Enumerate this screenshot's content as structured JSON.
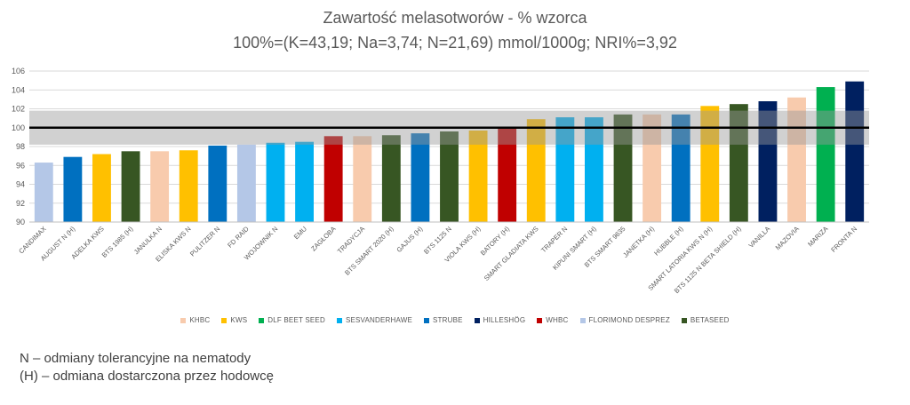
{
  "chart_data": {
    "type": "bar",
    "title": "Zawartość melasotworów - % wzorca",
    "subtitle": "100%=(K=43,19; Na=3,74; N=21,69) mmol/1000g; NRI%=3,92",
    "ylim": [
      90,
      106
    ],
    "yticks": [
      90,
      92,
      94,
      96,
      98,
      100,
      102,
      104,
      106
    ],
    "reference_line": 100,
    "band": [
      98.2,
      101.8
    ],
    "categories": [
      "CANDIMAX",
      "AUGUST N (H)",
      "ADELKA KWS",
      "BTS 1985 (H)",
      "JANULKA N",
      "ELISKA KWS N",
      "PULITZER N",
      "FD RAID",
      "WOJOWNIK N",
      "EMU",
      "ZAGŁOBA",
      "TRADYCJA",
      "BTS SMART 2020 (H)",
      "GAJUS (H)",
      "BTS 1125 N",
      "VIOLA KWS (H)",
      "BATORY (H)",
      "SMART GLADIATA KWS",
      "TRAPER N",
      "KIPUNI SMART (H)",
      "BTS SMART 9635",
      "JANETKA (H)",
      "HUBBLE (H)",
      "SMART LATORIA KWS N (H)",
      "BTS 1125 N BETA SHIELD (H)",
      "VANILLA",
      "MAZOVIA",
      "MARIZA",
      "FRONTA N"
    ],
    "values": [
      96.3,
      96.9,
      97.2,
      97.5,
      97.5,
      97.6,
      98.1,
      98.2,
      98.4,
      98.5,
      99.1,
      99.1,
      99.2,
      99.4,
      99.6,
      99.7,
      100.0,
      100.9,
      101.1,
      101.1,
      101.4,
      101.4,
      101.4,
      102.3,
      102.5,
      102.8,
      103.2,
      104.3,
      104.9
    ],
    "groups": [
      "FLORIMOND DESPREZ",
      "STRUBE",
      "KWS",
      "BETASEED",
      "KHBC",
      "KWS",
      "STRUBE",
      "FLORIMOND DESPREZ",
      "SESVANDERHAWE",
      "SESVANDERHAWE",
      "WHBC",
      "KHBC",
      "BETASEED",
      "STRUBE",
      "BETASEED",
      "KWS",
      "WHBC",
      "KWS",
      "SESVANDERHAWE",
      "SESVANDERHAWE",
      "BETASEED",
      "KHBC",
      "STRUBE",
      "KWS",
      "BETASEED",
      "HILLESHÖG",
      "KHBC",
      "DLF BEET SEED",
      "HILLESHÖG"
    ],
    "legend": [
      {
        "name": "KHBC",
        "color": "#F8CBAD"
      },
      {
        "name": "KWS",
        "color": "#FFC000"
      },
      {
        "name": "DLF BEET SEED",
        "color": "#00B050"
      },
      {
        "name": "SESVANDERHAWE",
        "color": "#00B0F0"
      },
      {
        "name": "STRUBE",
        "color": "#0070C0"
      },
      {
        "name": "HILLESHÖG",
        "color": "#002060"
      },
      {
        "name": "WHBC",
        "color": "#C00000"
      },
      {
        "name": "FLORIMOND DESPREZ",
        "color": "#B4C7E7"
      },
      {
        "name": "BETASEED",
        "color": "#375623"
      }
    ],
    "legend_position": "bottom",
    "grid": true
  },
  "notes": [
    "N – odmiany tolerancyjne na nematody",
    "(H) – odmiana dostarczona przez hodowcę"
  ]
}
